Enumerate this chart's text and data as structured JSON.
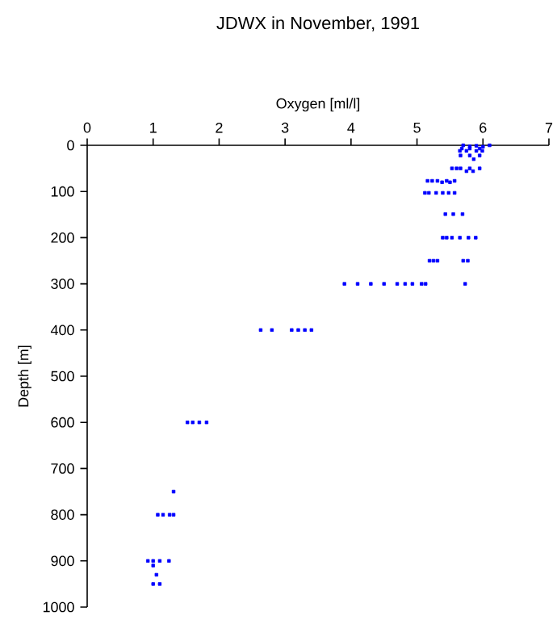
{
  "chart_data": {
    "type": "scatter",
    "title": "JDWX in November, 1991",
    "xlabel": "Oxygen [ml/l]",
    "ylabel": "Depth [m]",
    "xlim": [
      0,
      7
    ],
    "xticks": [
      0,
      1,
      2,
      3,
      4,
      5,
      6,
      7
    ],
    "ylim": [
      1000,
      0
    ],
    "yticks": [
      0,
      100,
      200,
      300,
      400,
      500,
      600,
      700,
      800,
      900,
      1000
    ],
    "marker": "square",
    "grid": false,
    "series": [
      {
        "color": "#0000ff",
        "x": [
          5.7,
          5.8,
          5.9,
          6.0,
          6.1,
          5.68,
          5.8,
          5.95,
          5.65,
          5.75,
          5.9,
          5.99,
          5.66,
          5.8,
          5.95,
          5.86,
          5.53,
          5.6,
          5.66,
          5.8,
          5.95,
          5.75,
          5.85,
          5.16,
          5.23,
          5.31,
          5.45,
          5.57,
          5.38,
          5.5,
          5.12,
          5.18,
          5.29,
          5.39,
          5.48,
          5.57,
          5.43,
          5.55,
          5.69,
          5.39,
          5.45,
          5.53,
          5.65,
          5.78,
          5.89,
          5.19,
          5.25,
          5.31,
          5.7,
          5.77,
          3.9,
          4.1,
          4.3,
          4.5,
          4.7,
          4.82,
          4.93,
          5.07,
          5.13,
          5.73,
          2.63,
          2.8,
          3.1,
          3.2,
          3.3,
          3.4,
          1.52,
          1.6,
          1.7,
          1.81,
          1.31,
          1.07,
          1.15,
          1.25,
          1.31,
          0.92,
          1.0,
          1.1,
          1.24,
          1.0,
          1.05,
          1.0,
          1.1
        ],
        "values": [
          0,
          2,
          1,
          3,
          0,
          7,
          7,
          7,
          12,
          12,
          12,
          12,
          22,
          22,
          22,
          30,
          50,
          50,
          50,
          50,
          50,
          56,
          56,
          77,
          77,
          77,
          77,
          77,
          80,
          80,
          103,
          103,
          103,
          103,
          103,
          103,
          149,
          149,
          149,
          200,
          200,
          200,
          200,
          200,
          200,
          250,
          250,
          250,
          250,
          250,
          300,
          300,
          300,
          300,
          300,
          300,
          300,
          300,
          300,
          300,
          400,
          400,
          400,
          400,
          400,
          400,
          600,
          600,
          600,
          600,
          750,
          800,
          800,
          800,
          800,
          900,
          900,
          900,
          900,
          910,
          930,
          950,
          950
        ]
      }
    ]
  }
}
